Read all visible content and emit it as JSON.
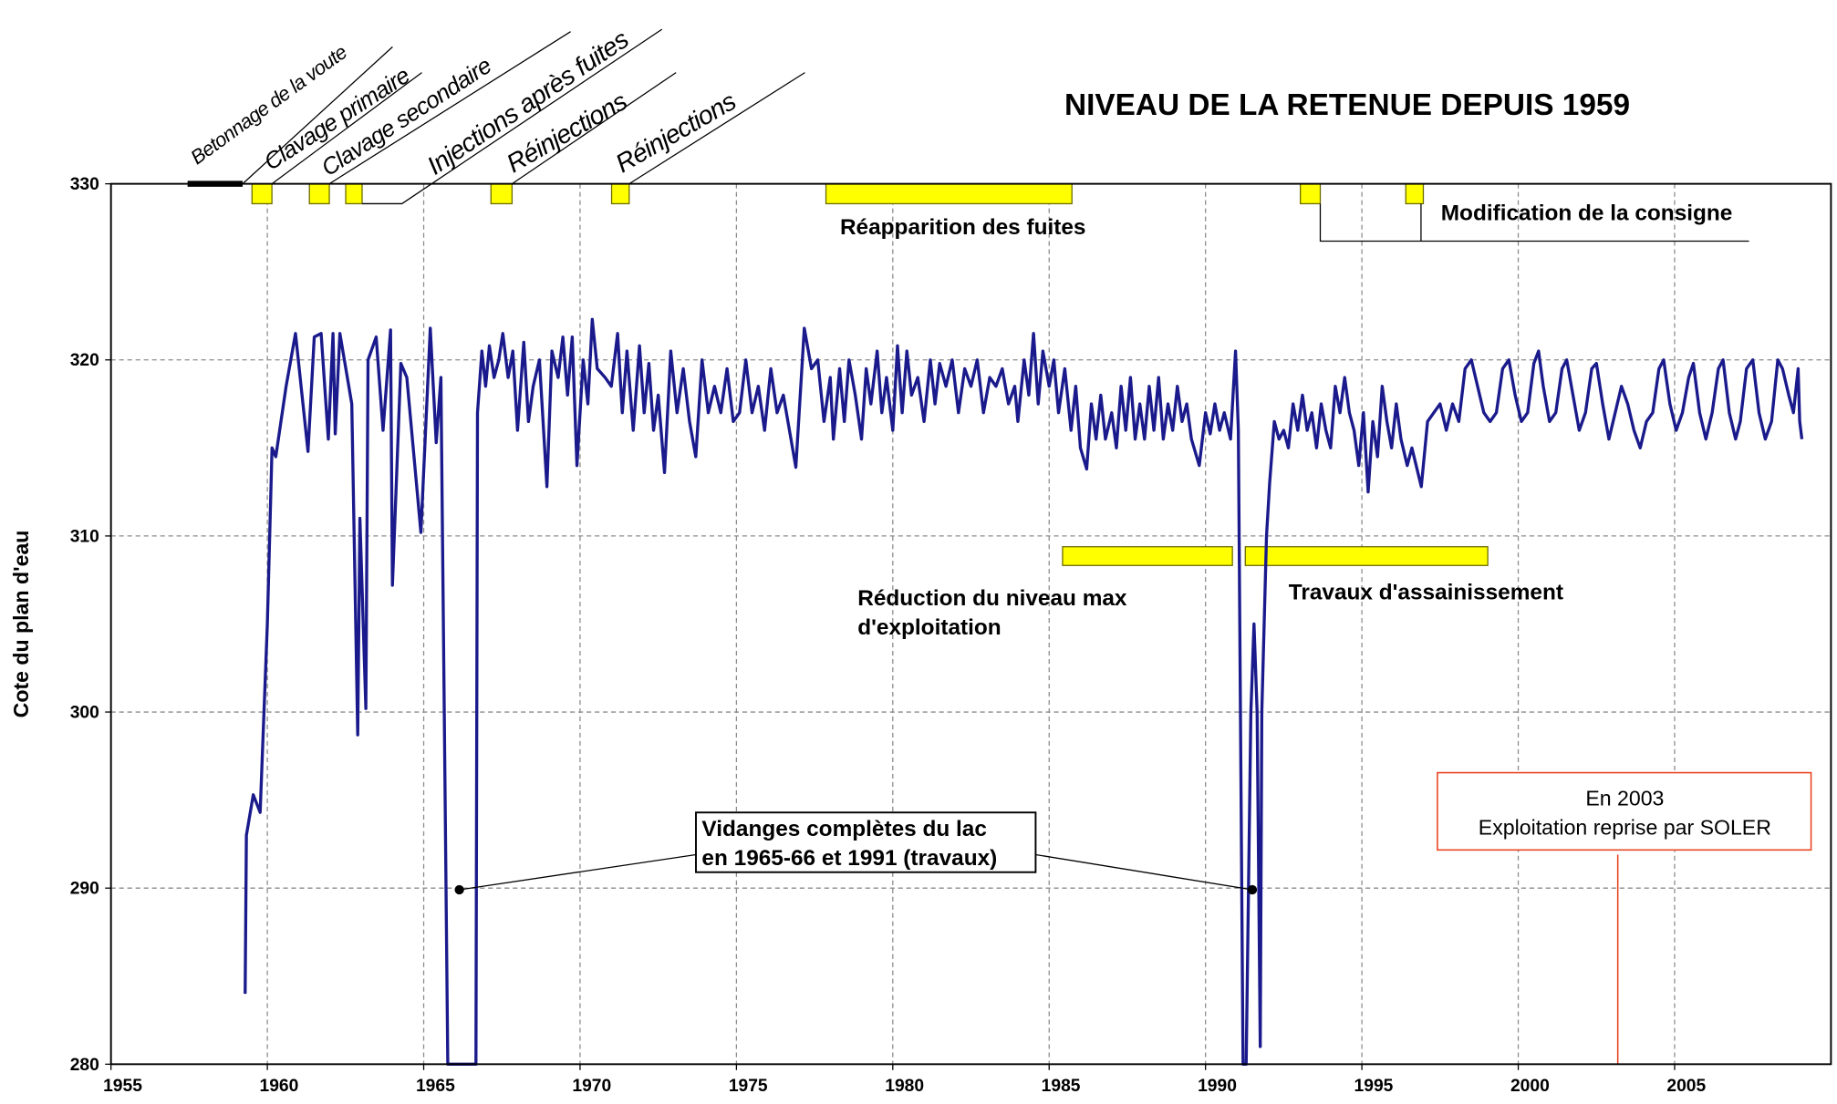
{
  "chart_data": {
    "type": "line",
    "title": "NIVEAU DE LA RETENUE DEPUIS 1959",
    "y_label": "Cote du plan d'eau",
    "color": "#1a1a8c",
    "xlim": [
      1955,
      2010
    ],
    "ylim": [
      280,
      330
    ],
    "xticks": [
      1955,
      1960,
      1965,
      1970,
      1975,
      1980,
      1985,
      1990,
      1995,
      2000,
      2005
    ],
    "yticks": [
      280,
      290,
      300,
      310,
      320,
      330
    ],
    "grid": true,
    "annotations": [
      "Betonnage de la voute",
      "Clavage primaire",
      "Clavage secondaire",
      "Injections après fuites",
      "Réinjections",
      "Réinjections",
      "Réapparition des fuites",
      "Modification de la consigne",
      "Réduction du niveau max",
      "d'exploitation",
      "Travaux d'assainissement",
      "Vidanges complètes du lac",
      "en 1965-66 et 1991 (travaux)",
      "En 2003",
      "Exploitation reprise par SOLER"
    ],
    "x": [
      1959.29,
      1959.33,
      1959.55,
      1959.77,
      1960.0,
      1960.15,
      1960.27,
      1960.6,
      1960.9,
      1961.3,
      1961.5,
      1961.72,
      1961.95,
      1962.1,
      1962.17,
      1962.32,
      1962.7,
      1962.89,
      1962.96,
      1963.15,
      1963.22,
      1963.48,
      1963.7,
      1963.94,
      1964.0,
      1964.27,
      1964.46,
      1964.91,
      1965.21,
      1965.4,
      1965.55,
      1965.77,
      1966.67,
      1966.72,
      1966.86,
      1966.98,
      1967.1,
      1967.25,
      1967.4,
      1967.53,
      1967.7,
      1967.85,
      1968.0,
      1968.2,
      1968.35,
      1968.5,
      1968.7,
      1968.94,
      1969.1,
      1969.3,
      1969.45,
      1969.6,
      1969.75,
      1969.9,
      1970.1,
      1970.25,
      1970.39,
      1970.55,
      1970.8,
      1971.0,
      1971.2,
      1971.35,
      1971.5,
      1971.7,
      1971.9,
      1972.05,
      1972.2,
      1972.35,
      1972.5,
      1972.7,
      1972.9,
      1973.1,
      1973.3,
      1973.5,
      1973.7,
      1973.9,
      1974.1,
      1974.3,
      1974.5,
      1974.7,
      1974.9,
      1975.1,
      1975.3,
      1975.5,
      1975.7,
      1975.9,
      1976.1,
      1976.3,
      1976.5,
      1976.9,
      1977.17,
      1977.4,
      1977.6,
      1977.8,
      1978.0,
      1978.1,
      1978.3,
      1978.45,
      1978.6,
      1978.8,
      1979.0,
      1979.15,
      1979.3,
      1979.5,
      1979.65,
      1979.8,
      1980.0,
      1980.15,
      1980.3,
      1980.45,
      1980.6,
      1980.8,
      1981.0,
      1981.2,
      1981.35,
      1981.5,
      1981.7,
      1981.9,
      1982.1,
      1982.3,
      1982.5,
      1982.7,
      1982.9,
      1983.1,
      1983.3,
      1983.5,
      1983.7,
      1983.9,
      1984.0,
      1984.2,
      1984.35,
      1984.5,
      1984.65,
      1984.8,
      1985.0,
      1985.15,
      1985.3,
      1985.5,
      1985.7,
      1985.85,
      1986.0,
      1986.2,
      1986.35,
      1986.5,
      1986.65,
      1986.8,
      1987.0,
      1987.15,
      1987.3,
      1987.45,
      1987.6,
      1987.75,
      1987.9,
      1988.05,
      1988.2,
      1988.35,
      1988.5,
      1988.65,
      1988.8,
      1988.95,
      1989.1,
      1989.25,
      1989.4,
      1989.55,
      1989.8,
      1990.0,
      1990.15,
      1990.3,
      1990.45,
      1990.6,
      1990.8,
      1990.96,
      1991.05,
      1991.2,
      1991.3,
      1991.45,
      1991.55,
      1991.65,
      1991.75,
      1991.8,
      1991.95,
      1992.05,
      1992.2,
      1992.35,
      1992.5,
      1992.65,
      1992.8,
      1992.95,
      1993.1,
      1993.25,
      1993.4,
      1993.55,
      1993.7,
      1993.85,
      1994.0,
      1994.15,
      1994.3,
      1994.45,
      1994.6,
      1994.75,
      1994.9,
      1995.05,
      1995.2,
      1995.35,
      1995.5,
      1995.65,
      1995.8,
      1995.95,
      1996.1,
      1996.25,
      1996.45,
      1996.6,
      1996.9,
      1997.1,
      1997.3,
      1997.5,
      1997.7,
      1997.9,
      1998.1,
      1998.3,
      1998.5,
      1998.7,
      1998.9,
      1999.1,
      1999.3,
      1999.5,
      1999.7,
      1999.9,
      2000.1,
      2000.3,
      2000.5,
      2000.65,
      2000.8,
      2001.0,
      2001.2,
      2001.4,
      2001.55,
      2001.75,
      2001.95,
      2002.15,
      2002.35,
      2002.5,
      2002.7,
      2002.9,
      2003.1,
      2003.3,
      2003.5,
      2003.7,
      2003.9,
      2004.1,
      2004.3,
      2004.5,
      2004.65,
      2004.85,
      2005.05,
      2005.25,
      2005.45,
      2005.6,
      2005.8,
      2006.0,
      2006.2,
      2006.4,
      2006.55,
      2006.75,
      2006.95,
      2007.1,
      2007.3,
      2007.5,
      2007.7,
      2007.9,
      2008.1,
      2008.3,
      2008.45,
      2008.65,
      2008.8,
      2008.95,
      2009.0,
      2009.07
    ],
    "values": [
      284,
      293,
      295.3,
      294.3,
      305,
      315,
      314.5,
      318.5,
      321.5,
      314.8,
      321.3,
      321.5,
      315.5,
      321.5,
      315.8,
      321.5,
      317.5,
      298.7,
      311,
      300.2,
      320,
      321.3,
      316,
      321.7,
      307.2,
      319.8,
      319,
      310.2,
      321.8,
      315.3,
      319,
      280,
      280,
      317,
      320.5,
      318.5,
      320.8,
      319,
      320,
      321.5,
      319,
      320.5,
      316,
      321,
      316.5,
      318.5,
      320,
      312.8,
      320.5,
      319,
      321.3,
      318,
      321.3,
      314,
      320,
      317.5,
      322.3,
      319.5,
      319,
      318.5,
      321.5,
      317,
      320.5,
      316,
      320.8,
      317,
      319.8,
      316,
      318,
      313.6,
      320.5,
      317,
      319.5,
      316.5,
      314.5,
      320,
      317,
      318.5,
      317,
      319.5,
      316.5,
      317,
      320,
      317,
      318.5,
      316,
      319.5,
      317,
      318,
      313.9,
      321.8,
      319.5,
      320,
      316.5,
      319,
      315.5,
      319.5,
      316.5,
      320,
      318,
      315.5,
      319.5,
      317.5,
      320.5,
      317,
      319,
      316,
      320.8,
      317,
      320.5,
      318,
      319,
      316.5,
      320,
      317.5,
      319.8,
      318.5,
      320,
      317,
      319.5,
      318.5,
      320,
      317,
      319,
      318.5,
      319.5,
      317.5,
      318.5,
      316.5,
      320,
      318,
      321.5,
      317.5,
      320.5,
      318.5,
      320,
      317,
      319.5,
      316,
      318.5,
      315,
      313.8,
      317.5,
      315.5,
      318,
      315.5,
      317,
      315,
      318.5,
      316,
      319,
      315.5,
      317.5,
      315.5,
      318.5,
      316,
      319,
      315.5,
      317.5,
      316,
      318.5,
      316.5,
      317.5,
      315.5,
      314,
      317,
      315.8,
      317.5,
      316,
      317,
      315.5,
      320.5,
      316,
      280,
      280,
      300,
      305,
      300,
      281,
      300,
      310,
      313,
      316.5,
      315.5,
      316,
      315,
      317.5,
      316,
      318,
      316,
      317,
      315,
      317.5,
      316,
      315,
      318.5,
      317,
      319,
      317,
      316,
      314,
      317,
      312.5,
      316.5,
      314.5,
      318.5,
      316.5,
      315,
      317.5,
      315.5,
      314,
      315,
      312.8,
      316.5,
      317,
      317.5,
      316,
      317.5,
      316.5,
      319.5,
      320,
      318.5,
      317,
      316.5,
      317,
      319.5,
      320,
      318,
      316.5,
      317,
      319.8,
      320.5,
      318.5,
      316.5,
      317,
      319.5,
      320,
      318,
      316,
      317,
      319.5,
      319.8,
      317.5,
      315.5,
      317,
      318.5,
      317.5,
      316,
      315,
      316.5,
      317,
      319.5,
      320,
      317.5,
      316,
      317,
      319,
      319.8,
      317,
      315.5,
      317,
      319.5,
      320,
      317,
      315.5,
      316.5,
      319.5,
      320,
      317,
      315.5,
      316.5,
      320,
      319.5,
      318,
      317,
      319.5,
      316.5,
      315.5
    ]
  }
}
